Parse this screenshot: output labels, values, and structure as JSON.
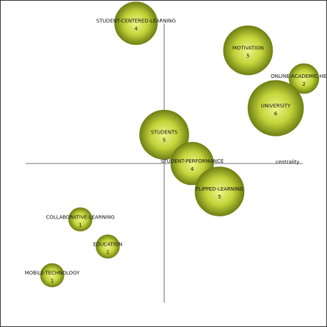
{
  "chart_data": {
    "type": "scatter",
    "subtype": "bubble",
    "xlabel": "centrality",
    "ylabel": "",
    "colors": {
      "bubble_center": "#eef58a",
      "bubble_mid": "#c3d43a",
      "bubble_edge": "#6f7f14",
      "axis": "#444444",
      "frame": "#333333"
    },
    "xlim": [
      -5,
      5
    ],
    "ylim": [
      -5,
      5
    ],
    "points": [
      {
        "name": "STUDENT-CENTERED-LEARNING",
        "value": "4",
        "count": 4,
        "x": -1.02,
        "y": 5.07
      },
      {
        "name": "MOTIVATION",
        "value": "5",
        "count": 5,
        "x": 3.03,
        "y": 4.09
      },
      {
        "name": "ONLINE-ACADEMIC-HELP-S",
        "value": "2",
        "count": 2,
        "x": 5.05,
        "y": 3.07
      },
      {
        "name": "UNIVERSITY",
        "value": "6",
        "count": 6,
        "x": 4.03,
        "y": 2.0
      },
      {
        "name": "STUDENTS",
        "value": "5",
        "count": 5,
        "x": 0.0,
        "y": 1.04
      },
      {
        "name": "STUDENT-PERFORMANCE",
        "value": "4",
        "count": 4,
        "x": 1.01,
        "y": 0.0
      },
      {
        "name": "FLIPPED-LEARNING",
        "value": "5",
        "count": 5,
        "x": 2.0,
        "y": -1.01
      },
      {
        "name": "COLLABORATIVE-LEARNING",
        "value": "1",
        "count": 1,
        "x": -3.03,
        "y": -2.02
      },
      {
        "name": "EDUCATION",
        "value": "1",
        "count": 1,
        "x": -2.04,
        "y": -3.0
      },
      {
        "name": "MOBILE-TECHNOLOGY",
        "value": "1",
        "count": 1,
        "x": -4.05,
        "y": -4.04
      }
    ]
  }
}
